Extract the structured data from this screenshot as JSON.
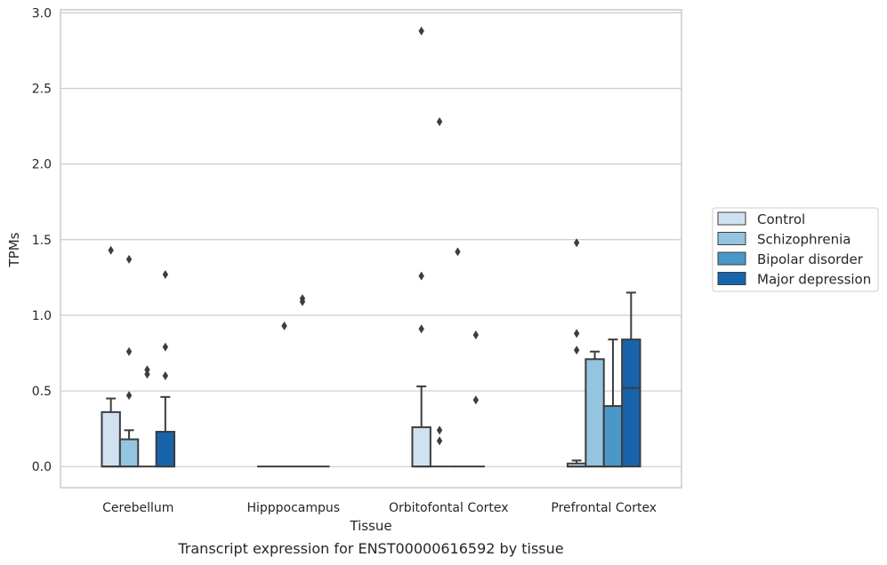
{
  "chart_data": {
    "type": "box",
    "xlabel": "Tissue",
    "ylabel": "TPMs",
    "caption": "Transcript expression for ENST00000616592 by tissue",
    "ylim": [
      -0.14,
      3.02
    ],
    "yticks": [
      "0.0",
      "0.5",
      "1.0",
      "1.5",
      "2.0",
      "2.5",
      "3.0"
    ],
    "grid": "horizontal",
    "legend_position": "right",
    "categories": [
      "Cerebellum",
      "Hipppocampus",
      "Orbitofontal Cortex",
      "Prefrontal Cortex"
    ],
    "series": [
      {
        "name": "Control",
        "color": "#d0e1f2",
        "boxes": [
          {
            "min": 0.0,
            "q1": 0.0,
            "median": 0.0,
            "q3": 0.36,
            "max": 0.45,
            "outliers": [
              1.43
            ]
          },
          {
            "min": 0.0,
            "q1": 0.0,
            "median": 0.0,
            "q3": 0.0,
            "max": 0.0,
            "outliers": []
          },
          {
            "min": 0.0,
            "q1": 0.0,
            "median": 0.0,
            "q3": 0.26,
            "max": 0.53,
            "outliers": [
              2.88,
              1.26,
              0.91
            ]
          },
          {
            "min": 0.0,
            "q1": 0.0,
            "median": 0.0,
            "q3": 0.02,
            "max": 0.04,
            "outliers": [
              1.48,
              0.88,
              0.77
            ]
          }
        ]
      },
      {
        "name": "Schizophrenia",
        "color": "#94c4df",
        "boxes": [
          {
            "min": 0.0,
            "q1": 0.0,
            "median": 0.0,
            "q3": 0.18,
            "max": 0.24,
            "outliers": [
              1.37,
              0.76,
              0.47
            ]
          },
          {
            "min": 0.0,
            "q1": 0.0,
            "median": 0.0,
            "q3": 0.0,
            "max": 0.0,
            "outliers": [
              0.93
            ]
          },
          {
            "min": 0.0,
            "q1": 0.0,
            "median": 0.0,
            "q3": 0.0,
            "max": 0.0,
            "outliers": [
              2.28,
              0.24,
              0.17
            ]
          },
          {
            "min": 0.0,
            "q1": 0.0,
            "median": 0.0,
            "q3": 0.71,
            "max": 0.76,
            "outliers": []
          }
        ]
      },
      {
        "name": "Bipolar disorder",
        "color": "#4a98c9",
        "boxes": [
          {
            "min": 0.0,
            "q1": 0.0,
            "median": 0.0,
            "q3": 0.0,
            "max": 0.0,
            "outliers": [
              0.64,
              0.61
            ]
          },
          {
            "min": 0.0,
            "q1": 0.0,
            "median": 0.0,
            "q3": 0.0,
            "max": 0.0,
            "outliers": [
              1.11,
              1.09
            ]
          },
          {
            "min": 0.0,
            "q1": 0.0,
            "median": 0.0,
            "q3": 0.0,
            "max": 0.0,
            "outliers": [
              1.42
            ]
          },
          {
            "min": 0.0,
            "q1": 0.0,
            "median": 0.0,
            "q3": 0.4,
            "max": 0.84,
            "outliers": []
          }
        ]
      },
      {
        "name": "Major depression",
        "color": "#1764ab",
        "boxes": [
          {
            "min": 0.0,
            "q1": 0.0,
            "median": 0.0,
            "q3": 0.23,
            "max": 0.46,
            "outliers": [
              1.27,
              0.79,
              0.6
            ]
          },
          {
            "min": 0.0,
            "q1": 0.0,
            "median": 0.0,
            "q3": 0.0,
            "max": 0.0,
            "outliers": []
          },
          {
            "min": 0.0,
            "q1": 0.0,
            "median": 0.0,
            "q3": 0.0,
            "max": 0.0,
            "outliers": [
              0.87,
              0.44
            ]
          },
          {
            "min": 0.0,
            "q1": 0.0,
            "median": 0.52,
            "q3": 0.84,
            "max": 1.15,
            "outliers": []
          }
        ]
      }
    ]
  }
}
